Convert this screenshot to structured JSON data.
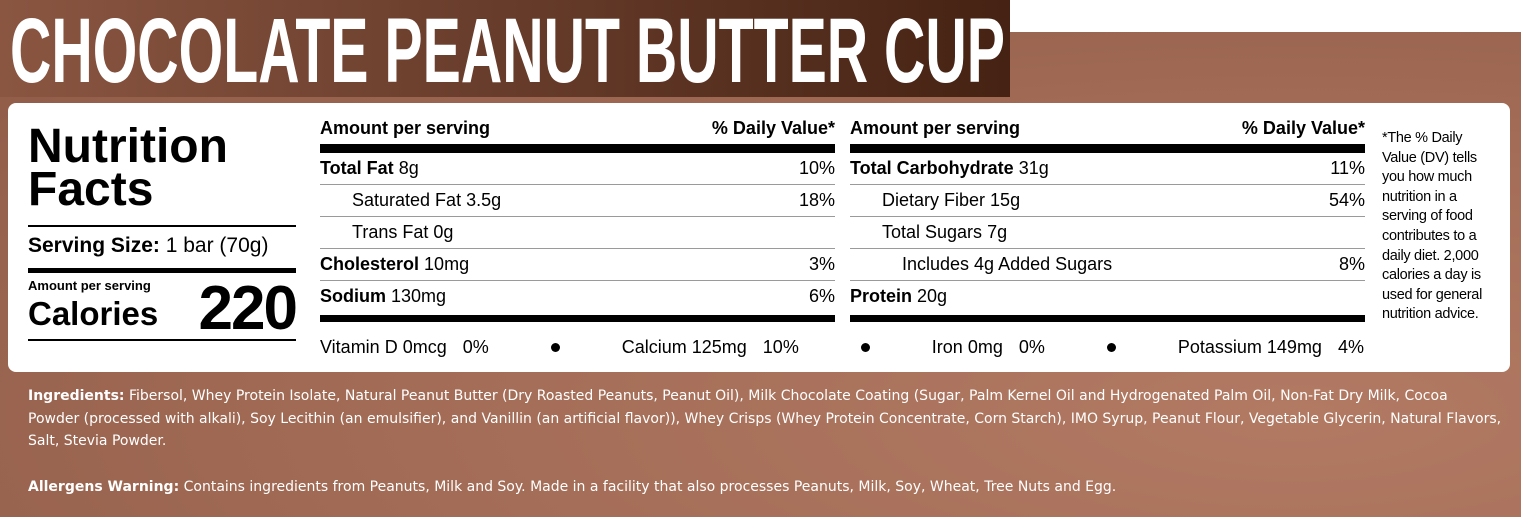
{
  "title": "CHOCOLATE PEANUT BUTTER CUP",
  "facts": {
    "heading": "Nutrition Facts",
    "serving_label": "Serving Size:",
    "serving_value": "1 bar (70g)",
    "amount_label": "Amount per serving",
    "calories_label": "Calories",
    "calories": 220
  },
  "columns": [
    {
      "header_left": "Amount per serving",
      "header_right": "% Daily Value*",
      "rows": [
        {
          "label": "Total Fat",
          "amount": "8g",
          "dv": "10%",
          "bold": true,
          "indent": 0
        },
        {
          "label": "Saturated Fat",
          "amount": "3.5g",
          "dv": "18%",
          "bold": false,
          "indent": 1
        },
        {
          "label": "Trans Fat",
          "amount": "0g",
          "bold": false,
          "indent": 1
        },
        {
          "label": "Cholesterol",
          "amount": "10mg",
          "dv": "3%",
          "bold": true,
          "indent": 0
        },
        {
          "label": "Sodium",
          "amount": "130mg",
          "dv": "6%",
          "bold": true,
          "indent": 0
        }
      ]
    },
    {
      "header_left": "Amount per serving",
      "header_right": "% Daily Value*",
      "rows": [
        {
          "label": "Total Carbohydrate",
          "amount": "31g",
          "dv": "11%",
          "bold": true,
          "indent": 0
        },
        {
          "label": "Dietary Fiber",
          "amount": "15g",
          "dv": "54%",
          "bold": false,
          "indent": 1
        },
        {
          "label": "Total Sugars",
          "amount": "7g",
          "bold": false,
          "indent": 1
        },
        {
          "label": "Includes 4g Added Sugars",
          "dv": "8%",
          "bold": false,
          "indent": 2
        },
        {
          "label": "Protein",
          "amount": "20g",
          "bold": true,
          "indent": 0
        }
      ]
    }
  ],
  "vitamins": [
    {
      "name": "Vitamin D",
      "amount": "0mcg",
      "dv": "0%"
    },
    {
      "name": "Calcium",
      "amount": "125mg",
      "dv": "10%"
    },
    {
      "name": "Iron",
      "amount": "0mg",
      "dv": "0%"
    },
    {
      "name": "Potassium",
      "amount": "149mg",
      "dv": "4%"
    }
  ],
  "footnote": "*The % Daily Value (DV) tells you how much nutrition in a serving of food contributes to a daily diet. 2,000 calories a day is used for general nutrition advice.",
  "ingredients": {
    "label": "Ingredients:",
    "text": "Fibersol, Whey Protein Isolate, Natural Peanut Butter (Dry Roasted Peanuts, Peanut Oil), Milk Chocolate Coating (Sugar, Palm Kernel Oil and Hydrogenated Palm Oil, Non-Fat Dry Milk, Cocoa Powder (processed with alkali), Soy Lecithin (an emulsifier), and Vanillin (an artificial flavor)), Whey Crisps (Whey Protein Concentrate, Corn Starch), IMO Syrup, Peanut Flour, Vegetable Glycerin, Natural Flavors, Salt, Stevia Powder."
  },
  "allergens": {
    "label": "Allergens Warning:",
    "text": "Contains ingredients from Peanuts, Milk and Soy. Made in a facility that also processes Peanuts, Milk, Soy, Wheat, Tree Nuts and Egg."
  }
}
